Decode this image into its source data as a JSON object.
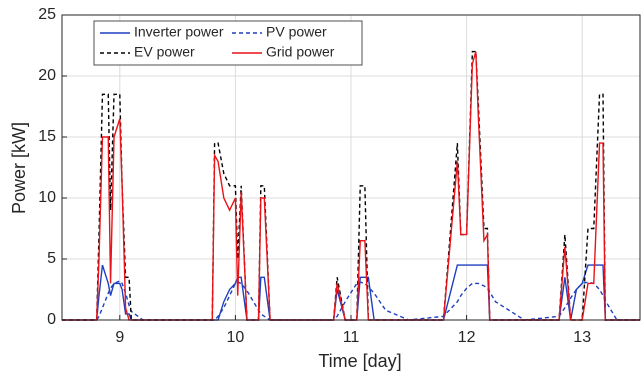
{
  "chart_data": {
    "type": "line",
    "xlabel": "Time [day]",
    "ylabel": "Power [kW]",
    "xlim": [
      8.5,
      13.5
    ],
    "xticks": [
      9,
      10,
      11,
      12,
      13
    ],
    "ylim": [
      0,
      25
    ],
    "yticks": [
      0,
      5,
      10,
      15,
      20,
      25
    ],
    "grid": true,
    "legend": "upper-left",
    "x": [
      8.5,
      8.8,
      8.82,
      8.85,
      8.9,
      8.92,
      8.95,
      9.0,
      9.02,
      9.05,
      9.08,
      9.1,
      9.2,
      9.5,
      9.8,
      9.82,
      9.85,
      9.9,
      9.95,
      10.0,
      10.02,
      10.05,
      10.1,
      10.2,
      10.22,
      10.25,
      10.3,
      10.35,
      10.6,
      10.85,
      10.88,
      10.95,
      11.05,
      11.08,
      11.12,
      11.15,
      11.2,
      11.3,
      11.5,
      11.8,
      11.92,
      11.95,
      12.0,
      12.05,
      12.08,
      12.1,
      12.15,
      12.18,
      12.2,
      12.25,
      12.5,
      12.8,
      12.85,
      12.9,
      12.95,
      13.0,
      13.05,
      13.1,
      13.15,
      13.18,
      13.2,
      13.25,
      13.3,
      13.5
    ],
    "series": [
      {
        "name": "Inverter power",
        "color": "#1f3fbf",
        "line_style": "solid",
        "values": [
          0,
          0,
          2,
          4.5,
          3,
          2,
          3,
          3,
          2.5,
          0.5,
          0.5,
          0,
          0,
          0,
          0,
          0,
          0,
          1.5,
          2.5,
          3,
          3.5,
          3.5,
          0,
          0,
          3.5,
          3.5,
          0,
          0,
          0,
          0,
          2.5,
          0,
          0,
          3.5,
          3.5,
          3.5,
          0,
          0,
          0,
          0,
          4.5,
          4.5,
          4.5,
          4.5,
          4.5,
          4.5,
          4.5,
          4.5,
          0,
          0,
          0,
          0,
          3.5,
          0,
          2.5,
          3,
          4.5,
          4.5,
          4.5,
          4.5,
          0,
          0,
          0,
          0
        ]
      },
      {
        "name": "PV power",
        "color": "#1f3fbf",
        "line_style": "dashed",
        "values": [
          0,
          0,
          0.3,
          1,
          2.2,
          2.6,
          3,
          3.2,
          3,
          2.2,
          1.2,
          0.7,
          0,
          0,
          0,
          0,
          0.3,
          1,
          2,
          3,
          3.1,
          3,
          2.4,
          0.8,
          0.5,
          0.3,
          0,
          0,
          0,
          0,
          0.3,
          1.5,
          3,
          3.1,
          3,
          2.7,
          2.2,
          0.8,
          0,
          0.3,
          1.5,
          2,
          2.6,
          3,
          3,
          3,
          2.8,
          2.6,
          2.3,
          1.5,
          0,
          0.3,
          1,
          1.8,
          2.5,
          3,
          3.1,
          3,
          2.5,
          2,
          1.6,
          0.8,
          0,
          0
        ]
      },
      {
        "name": "EV power",
        "color": "#000000",
        "line_style": "dashed",
        "values": [
          0,
          0,
          7,
          18.5,
          18.5,
          9,
          18.5,
          18.5,
          11,
          3.5,
          3.5,
          0,
          0,
          0,
          0,
          14.5,
          14.5,
          12,
          11,
          11,
          5,
          11,
          0,
          0,
          11,
          11,
          0,
          0,
          0,
          0,
          3.5,
          0,
          0,
          11,
          11,
          0,
          0,
          0,
          0,
          0,
          14.5,
          7,
          7,
          22,
          22,
          18,
          7.5,
          7.5,
          0,
          0,
          0,
          0,
          7,
          0,
          0,
          0,
          7.5,
          7.5,
          18.5,
          18.5,
          0,
          0,
          0,
          0
        ]
      },
      {
        "name": "Grid power",
        "color": "#e8141a",
        "line_style": "solid",
        "values": [
          0,
          0,
          5,
          15,
          15,
          3,
          15,
          16.5,
          11,
          1,
          0,
          0,
          0,
          0,
          0,
          13.5,
          13,
          10,
          9,
          10,
          2,
          10.5,
          0,
          0,
          10,
          10,
          0,
          0,
          0,
          0,
          3,
          0,
          0,
          6.5,
          6.5,
          0,
          0,
          0,
          0,
          0,
          13,
          7,
          7,
          21,
          22,
          17,
          6.5,
          7,
          0,
          0,
          0,
          0,
          6,
          0,
          0,
          0,
          3,
          3,
          14.5,
          14.5,
          0,
          0,
          0,
          0
        ]
      }
    ]
  }
}
